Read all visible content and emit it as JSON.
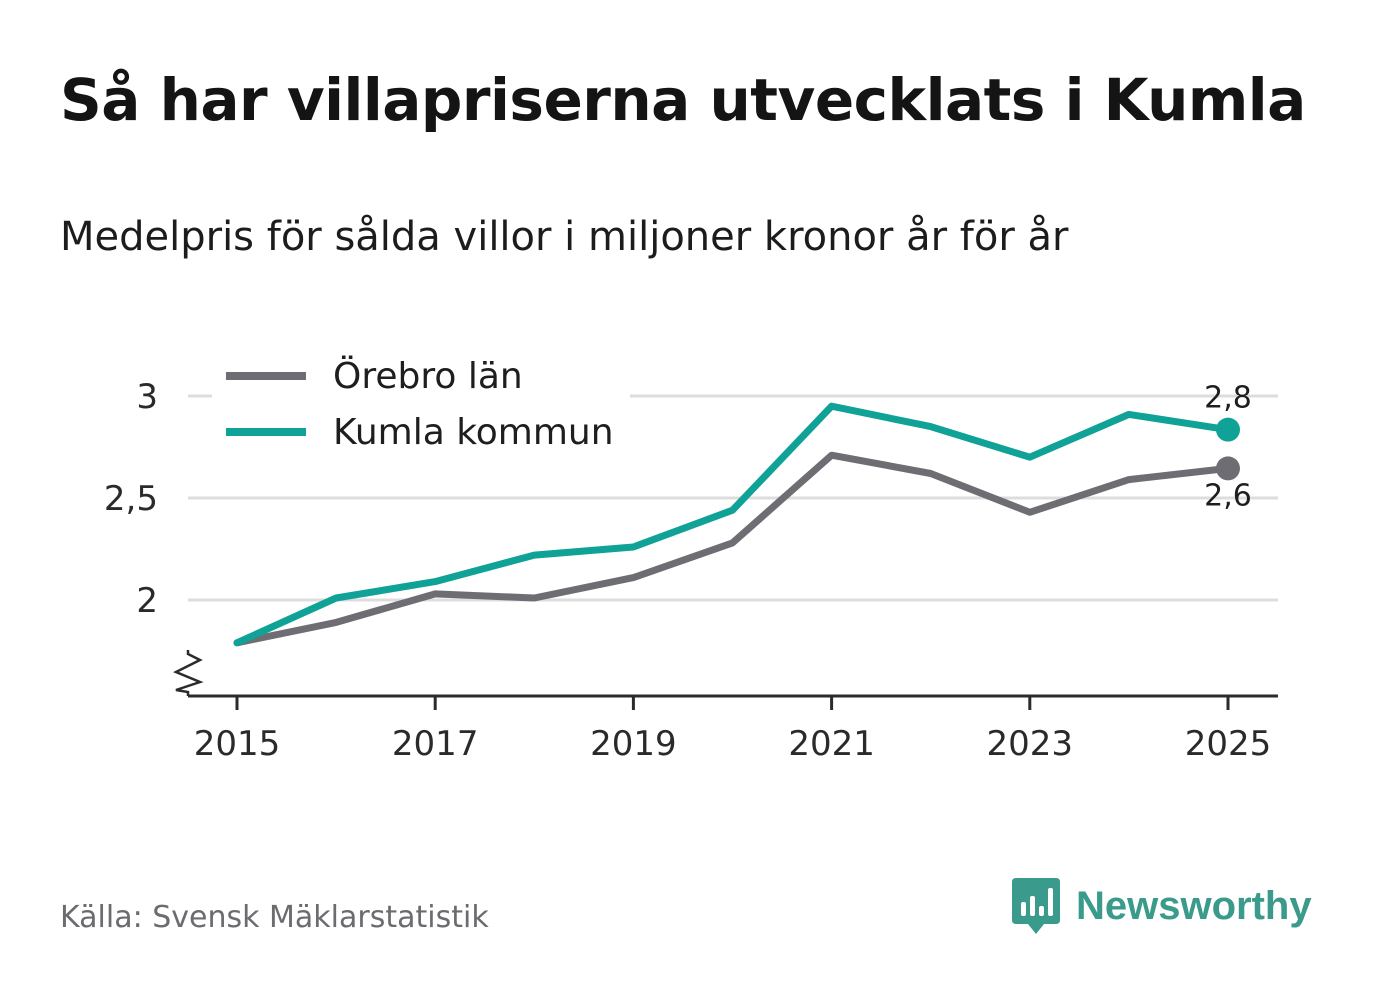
{
  "title": "Så har villapriserna utvecklats i Kumla",
  "subtitle": "Medelpris för sålda villor i miljoner kronor år för år",
  "source": "Källa: Svensk Mäklarstatistik",
  "brand": {
    "name": "Newsworthy",
    "icon": "newsworthy-logo-icon",
    "color": "#3a9a8b"
  },
  "chart_data": {
    "type": "line",
    "title": "Så har villapriserna utvecklats i Kumla",
    "subtitle": "Medelpris för sålda villor i miljoner kronor år för år",
    "xlabel": "",
    "ylabel": "",
    "x": [
      2015,
      2016,
      2017,
      2018,
      2019,
      2020,
      2021,
      2022,
      2023,
      2024,
      2025
    ],
    "x_ticks": [
      "2015",
      "2017",
      "2019",
      "2021",
      "2023",
      "2025"
    ],
    "y_ticks": [
      "2",
      "2,5",
      "3"
    ],
    "y_tick_values": [
      2,
      2.5,
      3
    ],
    "ylim": [
      1.52,
      3.06
    ],
    "grid": true,
    "axis_break": true,
    "legend_position": "top-left",
    "series": [
      {
        "name": "Örebro län",
        "color": "#6d6d73",
        "values": [
          1.79,
          1.89,
          2.03,
          2.01,
          2.11,
          2.28,
          2.71,
          2.62,
          2.43,
          2.59,
          2.645
        ],
        "end_label": "2,6"
      },
      {
        "name": "Kumla kommun",
        "color": "#10a296",
        "values": [
          1.79,
          2.01,
          2.09,
          2.22,
          2.26,
          2.44,
          2.95,
          2.85,
          2.7,
          2.91,
          2.835
        ],
        "end_label": "2,8"
      }
    ]
  }
}
